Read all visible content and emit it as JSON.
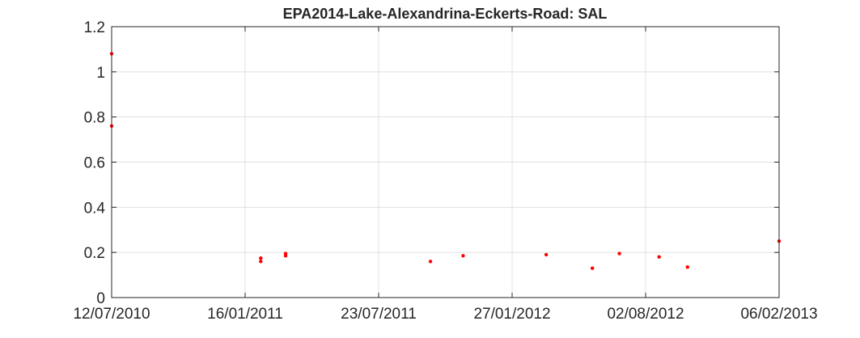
{
  "chart_data": {
    "type": "scatter",
    "title": "EPA2014-Lake-Alexandrina-Eckerts-Road: SAL",
    "xlabel": "",
    "ylabel": "",
    "x_type": "date",
    "xlim": [
      "2010-07-12",
      "2013-02-06"
    ],
    "ylim": [
      0,
      1.2
    ],
    "x_ticks": [
      {
        "date": "2010-07-12",
        "label": "12/07/2010"
      },
      {
        "date": "2011-01-16",
        "label": "16/01/2011"
      },
      {
        "date": "2011-07-23",
        "label": "23/07/2011"
      },
      {
        "date": "2012-01-27",
        "label": "27/01/2012"
      },
      {
        "date": "2012-08-02",
        "label": "02/08/2012"
      },
      {
        "date": "2013-02-06",
        "label": "06/02/2013"
      }
    ],
    "y_ticks": [
      {
        "value": 0,
        "label": "0"
      },
      {
        "value": 0.2,
        "label": "0.2"
      },
      {
        "value": 0.4,
        "label": "0.4"
      },
      {
        "value": 0.6,
        "label": "0.6"
      },
      {
        "value": 0.8,
        "label": "0.8"
      },
      {
        "value": 1.0,
        "label": "1"
      },
      {
        "value": 1.2,
        "label": "1.2"
      }
    ],
    "grid": true,
    "marker_color": "#ff0000",
    "series": [
      {
        "points": [
          {
            "x": "2010-07-12",
            "y": 1.08
          },
          {
            "x": "2010-07-12",
            "y": 0.76
          },
          {
            "x": "2011-02-07",
            "y": 0.175
          },
          {
            "x": "2011-02-07",
            "y": 0.16
          },
          {
            "x": "2011-03-14",
            "y": 0.195
          },
          {
            "x": "2011-03-14",
            "y": 0.185
          },
          {
            "x": "2011-10-04",
            "y": 0.16
          },
          {
            "x": "2011-11-19",
            "y": 0.185
          },
          {
            "x": "2012-03-15",
            "y": 0.19
          },
          {
            "x": "2012-05-19",
            "y": 0.13
          },
          {
            "x": "2012-06-26",
            "y": 0.195
          },
          {
            "x": "2012-08-21",
            "y": 0.18
          },
          {
            "x": "2012-09-30",
            "y": 0.135
          },
          {
            "x": "2013-02-06",
            "y": 0.25
          }
        ]
      }
    ]
  }
}
